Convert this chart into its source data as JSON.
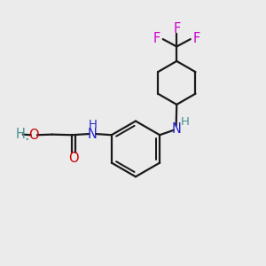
{
  "background_color": "#ebebeb",
  "bond_color": "#1a1a1a",
  "nitrogen_color": "#2222cc",
  "oxygen_color": "#cc0000",
  "fluorine_color": "#cc00cc",
  "teal_color": "#4a9090",
  "line_width": 1.6,
  "font_size": 10.5,
  "fig_width": 3.0,
  "fig_height": 3.0,
  "dpi": 100,
  "xlim": [
    0,
    10
  ],
  "ylim": [
    0,
    10
  ]
}
